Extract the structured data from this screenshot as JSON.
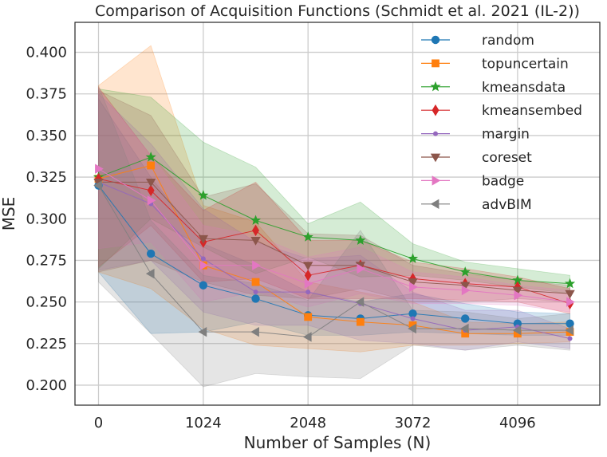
{
  "chart_data": {
    "type": "line",
    "title": "Comparison of Acquisition Functions (Schmidt et al. 2021 (IL-2))",
    "xlabel": "Number of Samples (N)",
    "ylabel": "MSE",
    "xlim": [
      -230,
      4900
    ],
    "ylim": [
      0.188,
      0.418
    ],
    "xticks": [
      0,
      1024,
      2048,
      3072,
      4096
    ],
    "xtick_labels": [
      "0",
      "1024",
      "2048",
      "3072",
      "4096"
    ],
    "yticks": [
      0.2,
      0.225,
      0.25,
      0.275,
      0.3,
      0.325,
      0.35,
      0.375,
      0.4
    ],
    "ytick_labels": [
      "0.200",
      "0.225",
      "0.250",
      "0.275",
      "0.300",
      "0.325",
      "0.350",
      "0.375",
      "0.400"
    ],
    "grid": true,
    "legend_position": "top-right",
    "x": [
      0,
      512,
      1024,
      1536,
      2048,
      2560,
      3072,
      3584,
      4096,
      4608
    ],
    "series": [
      {
        "name": "random",
        "color": "#1f77b4",
        "marker": "circle",
        "values": [
          0.32,
          0.279,
          0.26,
          0.252,
          0.242,
          0.24,
          0.243,
          0.24,
          0.237,
          0.237
        ],
        "lower": [
          0.268,
          0.231,
          0.232,
          0.238,
          0.23,
          0.23,
          0.232,
          0.231,
          0.23,
          0.23
        ],
        "upper": [
          0.372,
          0.325,
          0.285,
          0.272,
          0.256,
          0.25,
          0.255,
          0.249,
          0.244,
          0.243
        ]
      },
      {
        "name": "topuncertain",
        "color": "#ff7f0e",
        "marker": "square",
        "values": [
          0.324,
          0.332,
          0.272,
          0.262,
          0.241,
          0.238,
          0.236,
          0.231,
          0.231,
          0.232
        ],
        "lower": [
          0.268,
          0.258,
          0.234,
          0.224,
          0.222,
          0.22,
          0.224,
          0.224,
          0.225,
          0.226
        ],
        "upper": [
          0.38,
          0.404,
          0.308,
          0.298,
          0.262,
          0.256,
          0.25,
          0.238,
          0.237,
          0.238
        ]
      },
      {
        "name": "kmeansdata",
        "color": "#2ca02c",
        "marker": "star",
        "values": [
          0.325,
          0.337,
          0.314,
          0.299,
          0.289,
          0.287,
          0.276,
          0.268,
          0.263,
          0.261
        ],
        "lower": [
          0.27,
          0.3,
          0.283,
          0.267,
          0.277,
          0.265,
          0.266,
          0.263,
          0.259,
          0.255
        ],
        "upper": [
          0.378,
          0.373,
          0.346,
          0.331,
          0.297,
          0.31,
          0.285,
          0.274,
          0.27,
          0.266
        ]
      },
      {
        "name": "kmeansembed",
        "color": "#d62728",
        "marker": "diamond",
        "values": [
          0.324,
          0.317,
          0.286,
          0.293,
          0.266,
          0.272,
          0.264,
          0.261,
          0.259,
          0.249
        ],
        "lower": [
          0.271,
          0.296,
          0.262,
          0.264,
          0.252,
          0.252,
          0.252,
          0.251,
          0.25,
          0.243
        ],
        "upper": [
          0.379,
          0.338,
          0.305,
          0.322,
          0.287,
          0.287,
          0.274,
          0.27,
          0.265,
          0.258
        ]
      },
      {
        "name": "margin",
        "color": "#9467bd",
        "marker": "dot",
        "values": [
          0.322,
          0.309,
          0.276,
          0.256,
          0.256,
          0.249,
          0.24,
          0.233,
          0.235,
          0.228
        ],
        "lower": [
          0.269,
          0.275,
          0.244,
          0.236,
          0.236,
          0.227,
          0.225,
          0.221,
          0.226,
          0.222
        ],
        "upper": [
          0.375,
          0.345,
          0.306,
          0.286,
          0.276,
          0.278,
          0.256,
          0.245,
          0.245,
          0.234
        ]
      },
      {
        "name": "coreset",
        "color": "#8c564b",
        "marker": "triangle-down",
        "values": [
          0.322,
          0.322,
          0.288,
          0.287,
          0.272,
          0.272,
          0.262,
          0.26,
          0.257,
          0.255
        ],
        "lower": [
          0.268,
          0.275,
          0.262,
          0.254,
          0.252,
          0.258,
          0.25,
          0.25,
          0.252,
          0.25
        ],
        "upper": [
          0.377,
          0.362,
          0.313,
          0.321,
          0.291,
          0.29,
          0.272,
          0.267,
          0.263,
          0.26
        ]
      },
      {
        "name": "badge",
        "color": "#e377c2",
        "marker": "triangle-right",
        "values": [
          0.33,
          0.311,
          0.272,
          0.272,
          0.261,
          0.27,
          0.259,
          0.257,
          0.254,
          0.25
        ],
        "lower": [
          0.282,
          0.286,
          0.25,
          0.256,
          0.247,
          0.255,
          0.249,
          0.249,
          0.248,
          0.244
        ],
        "upper": [
          0.378,
          0.338,
          0.296,
          0.29,
          0.277,
          0.283,
          0.268,
          0.265,
          0.26,
          0.257
        ]
      },
      {
        "name": "advBIM",
        "color": "#7f7f7f",
        "marker": "triangle-left",
        "values": [
          0.32,
          0.267,
          0.232,
          0.232,
          0.229,
          0.25,
          0.234,
          0.234,
          0.233,
          0.233
        ],
        "lower": [
          0.262,
          0.231,
          0.199,
          0.207,
          0.205,
          0.204,
          0.224,
          0.221,
          0.224,
          0.221
        ],
        "upper": [
          0.38,
          0.299,
          0.266,
          0.261,
          0.251,
          0.293,
          0.245,
          0.244,
          0.24,
          0.243
        ]
      }
    ]
  }
}
